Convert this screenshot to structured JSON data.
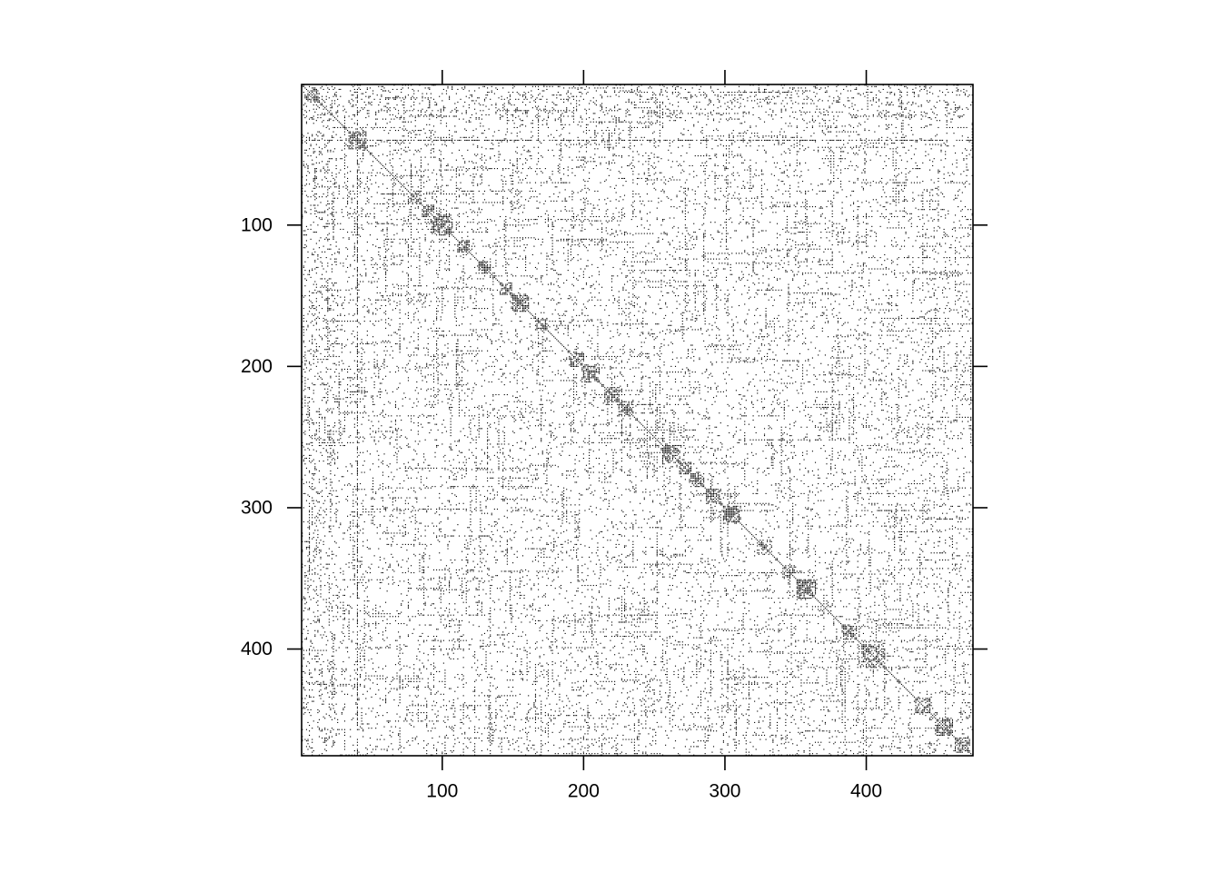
{
  "chart_data": {
    "type": "scatter",
    "subtype": "sparse-matrix-pattern",
    "title": "",
    "xlabel": "",
    "ylabel": "",
    "n": 475,
    "xlim": [
      0.5,
      475.5
    ],
    "ylim": [
      475.5,
      0.5
    ],
    "y_axis_inverted": true,
    "x_ticks": [
      100,
      200,
      300,
      400
    ],
    "y_ticks": [
      100,
      200,
      300,
      400
    ],
    "x_tick_labels": [
      "100",
      "200",
      "300",
      "400"
    ],
    "y_tick_labels": [
      "100",
      "200",
      "300",
      "400"
    ],
    "symmetric": true,
    "dense_row": 40,
    "dense_column": 40,
    "diagonal_blocks": [
      {
        "center": 8,
        "size": 8
      },
      {
        "center": 40,
        "size": 12
      },
      {
        "center": 80,
        "size": 8
      },
      {
        "center": 90,
        "size": 8
      },
      {
        "center": 100,
        "size": 14
      },
      {
        "center": 115,
        "size": 8
      },
      {
        "center": 130,
        "size": 8
      },
      {
        "center": 145,
        "size": 8
      },
      {
        "center": 155,
        "size": 12
      },
      {
        "center": 170,
        "size": 8
      },
      {
        "center": 195,
        "size": 10
      },
      {
        "center": 205,
        "size": 12
      },
      {
        "center": 220,
        "size": 10
      },
      {
        "center": 230,
        "size": 10
      },
      {
        "center": 262,
        "size": 12
      },
      {
        "center": 272,
        "size": 8
      },
      {
        "center": 280,
        "size": 10
      },
      {
        "center": 292,
        "size": 10
      },
      {
        "center": 305,
        "size": 12
      },
      {
        "center": 328,
        "size": 10
      },
      {
        "center": 345,
        "size": 8
      },
      {
        "center": 358,
        "size": 14
      },
      {
        "center": 388,
        "size": 10
      },
      {
        "center": 405,
        "size": 16
      },
      {
        "center": 440,
        "size": 10
      },
      {
        "center": 455,
        "size": 12
      },
      {
        "center": 468,
        "size": 10
      }
    ],
    "colors": {
      "points": "#000000",
      "frame": "#000000",
      "background": "#ffffff"
    },
    "grid": false,
    "legend": "none"
  }
}
